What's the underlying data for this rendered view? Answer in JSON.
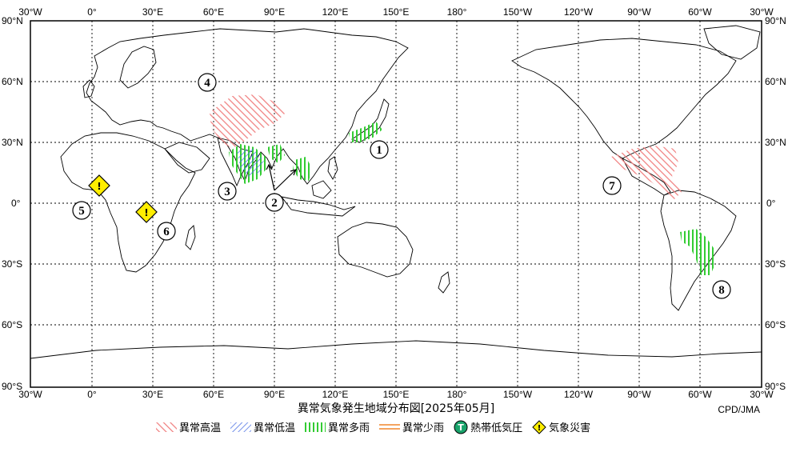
{
  "map": {
    "top_labels": [
      "30°W",
      "0°",
      "30°E",
      "60°E",
      "90°E",
      "120°E",
      "150°E",
      "180°",
      "150°W",
      "120°W",
      "90°W",
      "60°W",
      "30°W"
    ],
    "bottom_labels": [
      "30°W",
      "0°",
      "30°E",
      "60°E",
      "90°E",
      "120°E",
      "150°E",
      "180°",
      "150°W",
      "120°W",
      "90°W",
      "60°W",
      "30°W"
    ],
    "lat_labels": [
      "90°N",
      "60°N",
      "30°N",
      "0°",
      "30°S",
      "60°S",
      "90°S"
    ],
    "regions": [
      {
        "id": "1",
        "label": "①"
      },
      {
        "id": "2",
        "label": "②"
      },
      {
        "id": "3",
        "label": "③"
      },
      {
        "id": "4",
        "label": "④"
      },
      {
        "id": "5",
        "label": "⑤"
      },
      {
        "id": "6",
        "label": "⑥"
      },
      {
        "id": "7",
        "label": "⑦"
      },
      {
        "id": "8",
        "label": "⑧"
      }
    ],
    "colors": {
      "warm": "#f08080",
      "cold": "#4a6fe3",
      "wet": "#33cc33",
      "dry": "#f4a460",
      "tc": "#1aa36b",
      "disaster": "#ffee00"
    }
  },
  "title": "異常気象発生地域分布図[2025年05月]",
  "credit": "CPD/JMA",
  "legend": [
    {
      "icon": "hatch-red-icon",
      "label": "異常高温"
    },
    {
      "icon": "hatch-blue-icon",
      "label": "異常低温"
    },
    {
      "icon": "hatch-green-icon",
      "label": "異常多雨"
    },
    {
      "icon": "hatch-orange-icon",
      "label": "異常少雨"
    },
    {
      "icon": "tropical-cyclone-icon",
      "label": "熱帯低気圧",
      "symbol": "T"
    },
    {
      "icon": "disaster-icon",
      "label": "気象災害",
      "symbol": "!"
    }
  ]
}
